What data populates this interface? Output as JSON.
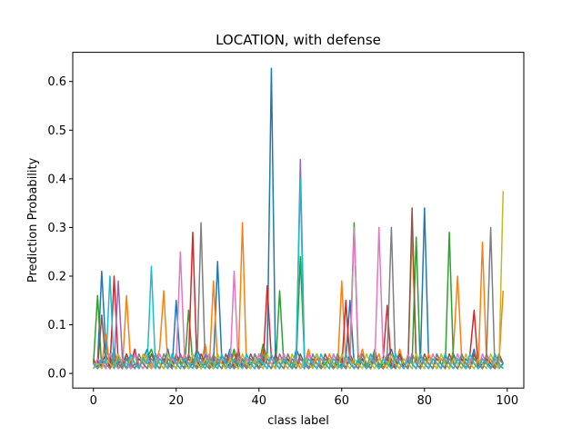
{
  "chart_data": {
    "type": "line",
    "title": "LOCATION, with defense",
    "xlabel": "class label",
    "ylabel": "Prediction Probability",
    "xlim": [
      -5,
      104
    ],
    "ylim": [
      -0.03,
      0.66
    ],
    "xticks": [
      0,
      20,
      40,
      60,
      80,
      100
    ],
    "yticks": [
      0.0,
      0.1,
      0.2,
      0.3,
      0.4,
      0.5,
      0.6
    ],
    "xtick_labels": [
      "0",
      "20",
      "40",
      "60",
      "80",
      "100"
    ],
    "ytick_labels": [
      "0.0",
      "0.1",
      "0.2",
      "0.3",
      "0.4",
      "0.5",
      "0.6"
    ],
    "grid": false,
    "legend": "none",
    "x": [
      0,
      1,
      2,
      3,
      4,
      5,
      6,
      7,
      8,
      9,
      10,
      11,
      12,
      13,
      14,
      15,
      16,
      17,
      18,
      19,
      20,
      21,
      22,
      23,
      24,
      25,
      26,
      27,
      28,
      29,
      30,
      31,
      32,
      33,
      34,
      35,
      36,
      37,
      38,
      39,
      40,
      41,
      42,
      43,
      44,
      45,
      46,
      47,
      48,
      49,
      50,
      51,
      52,
      53,
      54,
      55,
      56,
      57,
      58,
      59,
      60,
      61,
      62,
      63,
      64,
      65,
      66,
      67,
      68,
      69,
      70,
      71,
      72,
      73,
      74,
      75,
      76,
      77,
      78,
      79,
      80,
      81,
      82,
      83,
      84,
      85,
      86,
      87,
      88,
      89,
      90,
      91,
      92,
      93,
      94,
      95,
      96,
      97,
      98,
      99
    ],
    "series": [
      {
        "color": "#1f77b4",
        "values": [
          0.01,
          0.02,
          0.21,
          0.05,
          0.03,
          0.02,
          0.01,
          0.02,
          0.04,
          0.01,
          0.02,
          0.01,
          0.03,
          0.05,
          0.02,
          0.01,
          0.03,
          0.02,
          0.05,
          0.01,
          0.15,
          0.02,
          0.03,
          0.01,
          0.02,
          0.05,
          0.03,
          0.02,
          0.01,
          0.02,
          0.23,
          0.03,
          0.02,
          0.05,
          0.01,
          0.02,
          0.03,
          0.01,
          0.02,
          0.03,
          0.01,
          0.02,
          0.04,
          0.627,
          0.02,
          0.01,
          0.03,
          0.02,
          0.01,
          0.05,
          0.03,
          0.02,
          0.01,
          0.02,
          0.04,
          0.02,
          0.01,
          0.03,
          0.02,
          0.01,
          0.02,
          0.03,
          0.15,
          0.02,
          0.01,
          0.03,
          0.02,
          0.01,
          0.04,
          0.02,
          0.01,
          0.03,
          0.05,
          0.02,
          0.01,
          0.03,
          0.02,
          0.01,
          0.04,
          0.02,
          0.34,
          0.03,
          0.02,
          0.01,
          0.03,
          0.02,
          0.01,
          0.04,
          0.02,
          0.01,
          0.03,
          0.02,
          0.05,
          0.01,
          0.02,
          0.03,
          0.01,
          0.02,
          0.01,
          0.02
        ]
      },
      {
        "color": "#ff7f0e",
        "values": [
          0.01,
          0.03,
          0.02,
          0.08,
          0.01,
          0.02,
          0.04,
          0.01,
          0.16,
          0.02,
          0.01,
          0.03,
          0.02,
          0.04,
          0.01,
          0.02,
          0.05,
          0.17,
          0.01,
          0.03,
          0.02,
          0.01,
          0.04,
          0.02,
          0.03,
          0.01,
          0.02,
          0.06,
          0.01,
          0.19,
          0.02,
          0.03,
          0.01,
          0.02,
          0.04,
          0.02,
          0.31,
          0.01,
          0.03,
          0.02,
          0.01,
          0.05,
          0.02,
          0.01,
          0.03,
          0.02,
          0.01,
          0.04,
          0.02,
          0.03,
          0.01,
          0.02,
          0.05,
          0.01,
          0.03,
          0.02,
          0.01,
          0.04,
          0.02,
          0.01,
          0.19,
          0.02,
          0.03,
          0.01,
          0.02,
          0.05,
          0.01,
          0.03,
          0.02,
          0.04,
          0.01,
          0.02,
          0.03,
          0.01,
          0.05,
          0.02,
          0.01,
          0.29,
          0.03,
          0.02,
          0.01,
          0.04,
          0.02,
          0.01,
          0.03,
          0.02,
          0.01,
          0.05,
          0.2,
          0.03,
          0.01,
          0.02,
          0.04,
          0.01,
          0.27,
          0.02,
          0.03,
          0.01,
          0.02,
          0.17
        ]
      },
      {
        "color": "#2ca02c",
        "values": [
          0.02,
          0.16,
          0.01,
          0.03,
          0.02,
          0.05,
          0.01,
          0.02,
          0.03,
          0.01,
          0.04,
          0.02,
          0.01,
          0.03,
          0.05,
          0.02,
          0.01,
          0.03,
          0.02,
          0.01,
          0.04,
          0.02,
          0.01,
          0.13,
          0.02,
          0.03,
          0.01,
          0.02,
          0.04,
          0.01,
          0.02,
          0.03,
          0.01,
          0.02,
          0.05,
          0.01,
          0.03,
          0.02,
          0.01,
          0.04,
          0.02,
          0.06,
          0.03,
          0.02,
          0.01,
          0.17,
          0.02,
          0.03,
          0.01,
          0.02,
          0.24,
          0.03,
          0.01,
          0.02,
          0.04,
          0.01,
          0.02,
          0.03,
          0.01,
          0.02,
          0.03,
          0.01,
          0.04,
          0.31,
          0.02,
          0.03,
          0.01,
          0.02,
          0.05,
          0.01,
          0.02,
          0.03,
          0.01,
          0.02,
          0.04,
          0.01,
          0.03,
          0.02,
          0.28,
          0.01,
          0.03,
          0.02,
          0.01,
          0.04,
          0.02,
          0.01,
          0.29,
          0.02,
          0.01,
          0.03,
          0.02,
          0.01,
          0.04,
          0.02,
          0.01,
          0.03,
          0.02,
          0.01,
          0.04,
          0.02
        ]
      },
      {
        "color": "#d62728",
        "values": [
          0.03,
          0.01,
          0.02,
          0.04,
          0.01,
          0.2,
          0.02,
          0.03,
          0.01,
          0.02,
          0.05,
          0.01,
          0.03,
          0.02,
          0.01,
          0.04,
          0.02,
          0.01,
          0.03,
          0.02,
          0.01,
          0.04,
          0.02,
          0.03,
          0.29,
          0.02,
          0.01,
          0.03,
          0.02,
          0.01,
          0.04,
          0.02,
          0.03,
          0.01,
          0.02,
          0.05,
          0.01,
          0.03,
          0.02,
          0.01,
          0.04,
          0.02,
          0.18,
          0.03,
          0.02,
          0.01,
          0.04,
          0.02,
          0.01,
          0.03,
          0.02,
          0.01,
          0.04,
          0.02,
          0.01,
          0.03,
          0.02,
          0.01,
          0.04,
          0.02,
          0.01,
          0.15,
          0.02,
          0.01,
          0.03,
          0.02,
          0.01,
          0.04,
          0.02,
          0.01,
          0.03,
          0.14,
          0.01,
          0.02,
          0.04,
          0.01,
          0.03,
          0.02,
          0.01,
          0.04,
          0.02,
          0.01,
          0.03,
          0.02,
          0.01,
          0.04,
          0.02,
          0.01,
          0.03,
          0.02,
          0.01,
          0.04,
          0.13,
          0.01,
          0.03,
          0.02,
          0.01,
          0.04,
          0.02,
          0.01
        ]
      },
      {
        "color": "#9467bd",
        "values": [
          0.01,
          0.02,
          0.03,
          0.01,
          0.04,
          0.02,
          0.19,
          0.03,
          0.01,
          0.02,
          0.04,
          0.01,
          0.03,
          0.02,
          0.01,
          0.04,
          0.02,
          0.01,
          0.03,
          0.02,
          0.01,
          0.04,
          0.02,
          0.01,
          0.03,
          0.02,
          0.01,
          0.04,
          0.02,
          0.01,
          0.03,
          0.02,
          0.01,
          0.04,
          0.02,
          0.01,
          0.03,
          0.02,
          0.01,
          0.04,
          0.02,
          0.01,
          0.03,
          0.02,
          0.01,
          0.04,
          0.02,
          0.01,
          0.03,
          0.02,
          0.44,
          0.03,
          0.01,
          0.02,
          0.04,
          0.01,
          0.03,
          0.02,
          0.01,
          0.04,
          0.02,
          0.01,
          0.03,
          0.02,
          0.01,
          0.04,
          0.02,
          0.01,
          0.03,
          0.02,
          0.01,
          0.04,
          0.02,
          0.01,
          0.03,
          0.02,
          0.01,
          0.04,
          0.02,
          0.01,
          0.03,
          0.02,
          0.01,
          0.04,
          0.02,
          0.01,
          0.03,
          0.02,
          0.01,
          0.04,
          0.02,
          0.01,
          0.03,
          0.02,
          0.01,
          0.04,
          0.02,
          0.01,
          0.03,
          0.02
        ]
      },
      {
        "color": "#8c564b",
        "values": [
          0.02,
          0.01,
          0.12,
          0.02,
          0.01,
          0.03,
          0.02,
          0.01,
          0.04,
          0.02,
          0.01,
          0.03,
          0.02,
          0.01,
          0.04,
          0.02,
          0.01,
          0.03,
          0.02,
          0.01,
          0.04,
          0.02,
          0.01,
          0.03,
          0.02,
          0.01,
          0.04,
          0.02,
          0.01,
          0.03,
          0.02,
          0.01,
          0.04,
          0.02,
          0.01,
          0.03,
          0.02,
          0.01,
          0.04,
          0.02,
          0.01,
          0.03,
          0.02,
          0.01,
          0.04,
          0.02,
          0.01,
          0.03,
          0.02,
          0.01,
          0.04,
          0.02,
          0.01,
          0.03,
          0.02,
          0.01,
          0.04,
          0.02,
          0.01,
          0.03,
          0.02,
          0.01,
          0.04,
          0.02,
          0.01,
          0.03,
          0.02,
          0.01,
          0.04,
          0.02,
          0.01,
          0.03,
          0.02,
          0.01,
          0.04,
          0.02,
          0.01,
          0.34,
          0.02,
          0.01,
          0.04,
          0.02,
          0.01,
          0.03,
          0.02,
          0.01,
          0.04,
          0.02,
          0.01,
          0.03,
          0.02,
          0.01,
          0.04,
          0.02,
          0.01,
          0.03,
          0.02,
          0.01,
          0.04,
          0.02
        ]
      },
      {
        "color": "#e377c2",
        "values": [
          0.01,
          0.03,
          0.02,
          0.01,
          0.04,
          0.02,
          0.01,
          0.03,
          0.02,
          0.01,
          0.04,
          0.02,
          0.01,
          0.03,
          0.02,
          0.01,
          0.04,
          0.02,
          0.01,
          0.03,
          0.02,
          0.25,
          0.04,
          0.02,
          0.01,
          0.03,
          0.02,
          0.01,
          0.04,
          0.02,
          0.01,
          0.03,
          0.02,
          0.01,
          0.21,
          0.02,
          0.01,
          0.03,
          0.02,
          0.01,
          0.04,
          0.02,
          0.01,
          0.03,
          0.02,
          0.01,
          0.04,
          0.02,
          0.01,
          0.03,
          0.02,
          0.01,
          0.04,
          0.02,
          0.01,
          0.03,
          0.02,
          0.01,
          0.04,
          0.02,
          0.01,
          0.03,
          0.02,
          0.3,
          0.04,
          0.02,
          0.01,
          0.03,
          0.02,
          0.3,
          0.04,
          0.02,
          0.01,
          0.03,
          0.02,
          0.01,
          0.04,
          0.02,
          0.01,
          0.03,
          0.02,
          0.01,
          0.04,
          0.02,
          0.01,
          0.03,
          0.02,
          0.01,
          0.04,
          0.02,
          0.01,
          0.03,
          0.02,
          0.01,
          0.04,
          0.02,
          0.01,
          0.03,
          0.02,
          0.01
        ]
      },
      {
        "color": "#7f7f7f",
        "values": [
          0.02,
          0.01,
          0.03,
          0.02,
          0.01,
          0.04,
          0.02,
          0.01,
          0.03,
          0.02,
          0.01,
          0.04,
          0.02,
          0.01,
          0.03,
          0.02,
          0.01,
          0.04,
          0.02,
          0.01,
          0.03,
          0.02,
          0.01,
          0.04,
          0.02,
          0.01,
          0.31,
          0.02,
          0.01,
          0.04,
          0.02,
          0.01,
          0.03,
          0.02,
          0.01,
          0.04,
          0.02,
          0.01,
          0.03,
          0.02,
          0.01,
          0.04,
          0.02,
          0.01,
          0.03,
          0.02,
          0.01,
          0.04,
          0.02,
          0.01,
          0.03,
          0.02,
          0.01,
          0.04,
          0.02,
          0.01,
          0.03,
          0.02,
          0.01,
          0.04,
          0.02,
          0.01,
          0.03,
          0.02,
          0.01,
          0.04,
          0.02,
          0.01,
          0.03,
          0.02,
          0.01,
          0.04,
          0.3,
          0.01,
          0.03,
          0.02,
          0.01,
          0.04,
          0.02,
          0.01,
          0.03,
          0.02,
          0.01,
          0.04,
          0.02,
          0.01,
          0.03,
          0.02,
          0.01,
          0.04,
          0.02,
          0.01,
          0.03,
          0.02,
          0.01,
          0.04,
          0.3,
          0.01,
          0.03,
          0.02
        ]
      },
      {
        "color": "#bcbd22",
        "values": [
          0.01,
          0.02,
          0.01,
          0.03,
          0.02,
          0.01,
          0.04,
          0.02,
          0.01,
          0.03,
          0.02,
          0.01,
          0.04,
          0.02,
          0.01,
          0.03,
          0.02,
          0.01,
          0.04,
          0.02,
          0.01,
          0.03,
          0.02,
          0.01,
          0.04,
          0.02,
          0.01,
          0.03,
          0.02,
          0.01,
          0.04,
          0.02,
          0.01,
          0.03,
          0.02,
          0.01,
          0.04,
          0.02,
          0.01,
          0.03,
          0.02,
          0.01,
          0.04,
          0.02,
          0.01,
          0.03,
          0.02,
          0.01,
          0.04,
          0.02,
          0.01,
          0.03,
          0.02,
          0.01,
          0.04,
          0.02,
          0.01,
          0.03,
          0.02,
          0.01,
          0.04,
          0.02,
          0.01,
          0.03,
          0.02,
          0.01,
          0.04,
          0.02,
          0.01,
          0.03,
          0.02,
          0.01,
          0.04,
          0.02,
          0.01,
          0.03,
          0.02,
          0.01,
          0.04,
          0.02,
          0.01,
          0.03,
          0.02,
          0.01,
          0.04,
          0.02,
          0.01,
          0.03,
          0.02,
          0.01,
          0.04,
          0.02,
          0.01,
          0.03,
          0.02,
          0.01,
          0.04,
          0.02,
          0.01,
          0.375
        ]
      },
      {
        "color": "#17becf",
        "values": [
          0.02,
          0.01,
          0.03,
          0.02,
          0.2,
          0.01,
          0.03,
          0.02,
          0.01,
          0.04,
          0.02,
          0.01,
          0.03,
          0.02,
          0.22,
          0.01,
          0.03,
          0.02,
          0.01,
          0.04,
          0.02,
          0.01,
          0.03,
          0.02,
          0.01,
          0.04,
          0.02,
          0.01,
          0.03,
          0.02,
          0.01,
          0.04,
          0.02,
          0.01,
          0.03,
          0.02,
          0.01,
          0.04,
          0.02,
          0.01,
          0.03,
          0.02,
          0.01,
          0.04,
          0.02,
          0.01,
          0.03,
          0.02,
          0.01,
          0.04,
          0.4,
          0.01,
          0.03,
          0.02,
          0.01,
          0.04,
          0.02,
          0.01,
          0.03,
          0.02,
          0.01,
          0.04,
          0.02,
          0.01,
          0.03,
          0.02,
          0.01,
          0.04,
          0.02,
          0.01,
          0.03,
          0.02,
          0.01,
          0.04,
          0.02,
          0.01,
          0.03,
          0.02,
          0.01,
          0.04,
          0.02,
          0.01,
          0.03,
          0.02,
          0.01,
          0.04,
          0.02,
          0.01,
          0.03,
          0.02,
          0.01,
          0.04,
          0.02,
          0.01,
          0.03,
          0.02,
          0.01,
          0.04,
          0.02,
          0.01
        ]
      }
    ]
  }
}
